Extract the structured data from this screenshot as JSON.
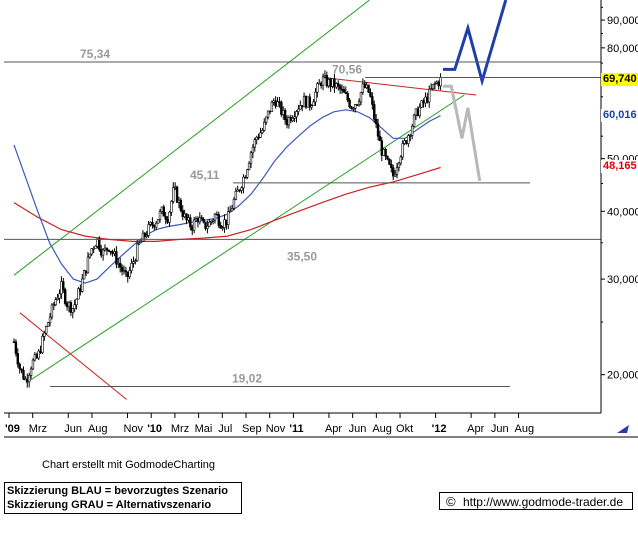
{
  "chart_data": {
    "type": "candlestick",
    "y_scale": "log",
    "ylim": [
      17000,
      98000
    ],
    "y_ticks": [
      {
        "value": 20000,
        "label": "20,000"
      },
      {
        "value": 30000,
        "label": "30,000"
      },
      {
        "value": 40000,
        "label": "40,000"
      },
      {
        "value": 50000,
        "label": "50,000"
      },
      {
        "value": 60000,
        "label": "60,000"
      },
      {
        "value": 70000,
        "label": "70,000"
      },
      {
        "value": 80000,
        "label": "80,000"
      },
      {
        "value": 90000,
        "label": "90,000"
      }
    ],
    "x_ticks": [
      {
        "t": 0,
        "label": "'09",
        "bold": true
      },
      {
        "t": 2,
        "label": "Mrz"
      },
      {
        "t": 5,
        "label": "Jun"
      },
      {
        "t": 7,
        "label": "Aug"
      },
      {
        "t": 10,
        "label": "Nov"
      },
      {
        "t": 12,
        "label": "'10",
        "bold": true
      },
      {
        "t": 14,
        "label": "Mrz"
      },
      {
        "t": 16,
        "label": "Mai"
      },
      {
        "t": 18,
        "label": "Jul"
      },
      {
        "t": 20,
        "label": "Sep"
      },
      {
        "t": 22,
        "label": "Nov"
      },
      {
        "t": 24,
        "label": "'11",
        "bold": true
      },
      {
        "t": 27,
        "label": "Apr"
      },
      {
        "t": 29,
        "label": "Jun"
      },
      {
        "t": 31,
        "label": "Aug"
      },
      {
        "t": 33,
        "label": "Okt"
      },
      {
        "t": 36,
        "label": "'12",
        "bold": true
      },
      {
        "t": 39,
        "label": "Apr"
      },
      {
        "t": 41,
        "label": "Jun"
      },
      {
        "t": 43,
        "label": "Aug"
      }
    ],
    "levels": [
      {
        "value": 75.34,
        "label": "75,34"
      },
      {
        "value": 70.56,
        "label": "70,56"
      },
      {
        "value": 45.11,
        "label": "45,11"
      },
      {
        "value": 35.5,
        "label": "35,50"
      },
      {
        "value": 19.02,
        "label": "19,02"
      }
    ],
    "price_markers": [
      {
        "value": 69740,
        "label": "69,740",
        "bg": "#ffff00",
        "color": "#000000"
      },
      {
        "value": 60016,
        "label": "60,016",
        "bg": "#ffffff",
        "color": "#1f3fa8"
      },
      {
        "value": 48165,
        "label": "48,165",
        "bg": "#ffffff",
        "color": "#e00000"
      }
    ],
    "series": {
      "close": [
        [
          0,
          23000
        ],
        [
          0.5,
          20500
        ],
        [
          1,
          19500
        ],
        [
          1.5,
          21000
        ],
        [
          2,
          21500
        ],
        [
          2.5,
          23500
        ],
        [
          3,
          25500
        ],
        [
          3.5,
          27500
        ],
        [
          4,
          29000
        ],
        [
          4.5,
          27000
        ],
        [
          5,
          26500
        ],
        [
          5.5,
          28500
        ],
        [
          6,
          31000
        ],
        [
          6.5,
          34000
        ],
        [
          7,
          35500
        ],
        [
          7.5,
          33500
        ],
        [
          8,
          34500
        ],
        [
          8.5,
          33000
        ],
        [
          9,
          31500
        ],
        [
          9.5,
          30000
        ],
        [
          10,
          32000
        ],
        [
          10.5,
          34500
        ],
        [
          11,
          36000
        ],
        [
          11.5,
          37500
        ],
        [
          12,
          38500
        ],
        [
          12.5,
          40000
        ],
        [
          13,
          39000
        ],
        [
          13.5,
          44000
        ],
        [
          14,
          41000
        ],
        [
          14.5,
          38500
        ],
        [
          15,
          37500
        ],
        [
          15.5,
          39000
        ],
        [
          16,
          37500
        ],
        [
          16.5,
          38000
        ],
        [
          17,
          39500
        ],
        [
          17.5,
          38000
        ],
        [
          18,
          38500
        ],
        [
          18.5,
          41500
        ],
        [
          19,
          44000
        ],
        [
          19.5,
          47000
        ],
        [
          20,
          51500
        ],
        [
          20.5,
          55000
        ],
        [
          21,
          56500
        ],
        [
          21.5,
          61000
        ],
        [
          22,
          64500
        ],
        [
          22.5,
          61500
        ],
        [
          23,
          58500
        ],
        [
          23.5,
          60500
        ],
        [
          24,
          62500
        ],
        [
          24.5,
          64000
        ],
        [
          25,
          63000
        ],
        [
          25.5,
          66500
        ],
        [
          26,
          70000
        ],
        [
          26.5,
          69000
        ],
        [
          27,
          68500
        ],
        [
          27.5,
          67000
        ],
        [
          28,
          65000
        ],
        [
          28.5,
          62500
        ],
        [
          29,
          64000
        ],
        [
          29.5,
          68000
        ],
        [
          30,
          66000
        ],
        [
          30.5,
          58000
        ],
        [
          31,
          52000
        ],
        [
          31.5,
          49000
        ],
        [
          32,
          46500
        ],
        [
          32.5,
          50500
        ],
        [
          33,
          53500
        ],
        [
          33.5,
          57000
        ],
        [
          34,
          61000
        ],
        [
          34.5,
          63000
        ],
        [
          35,
          65500
        ],
        [
          35.5,
          68500
        ],
        [
          36,
          69740
        ]
      ],
      "ma_blue": [
        [
          0,
          53000
        ],
        [
          1,
          46000
        ],
        [
          2,
          40000
        ],
        [
          3,
          35000
        ],
        [
          4,
          32000
        ],
        [
          5,
          30000
        ],
        [
          6,
          29500
        ],
        [
          7,
          30000
        ],
        [
          8,
          31500
        ],
        [
          9,
          33000
        ],
        [
          10,
          34500
        ],
        [
          11,
          36000
        ],
        [
          12,
          37000
        ],
        [
          13,
          37500
        ],
        [
          14,
          37800
        ],
        [
          15,
          38200
        ],
        [
          16,
          38500
        ],
        [
          17,
          38800
        ],
        [
          18,
          39500
        ],
        [
          19,
          41000
        ],
        [
          20,
          43000
        ],
        [
          21,
          46000
        ],
        [
          22,
          49500
        ],
        [
          23,
          52500
        ],
        [
          24,
          55000
        ],
        [
          25,
          57500
        ],
        [
          26,
          59500
        ],
        [
          27,
          61000
        ],
        [
          28,
          61500
        ],
        [
          29,
          61000
        ],
        [
          30,
          59500
        ],
        [
          31,
          57000
        ],
        [
          32,
          54500
        ],
        [
          33,
          54500
        ],
        [
          34,
          56500
        ],
        [
          35,
          58500
        ],
        [
          36,
          60016
        ]
      ],
      "ma_red": [
        [
          0,
          41500
        ],
        [
          2,
          39000
        ],
        [
          4,
          37000
        ],
        [
          6,
          36000
        ],
        [
          8,
          35500
        ],
        [
          10,
          35200
        ],
        [
          12,
          35200
        ],
        [
          14,
          35500
        ],
        [
          16,
          35700
        ],
        [
          18,
          36000
        ],
        [
          20,
          37000
        ],
        [
          22,
          38500
        ],
        [
          24,
          40000
        ],
        [
          26,
          41500
        ],
        [
          28,
          43000
        ],
        [
          30,
          44300
        ],
        [
          32,
          45300
        ],
        [
          34,
          46700
        ],
        [
          36,
          48165
        ]
      ]
    },
    "channel": {
      "upper": [
        [
          0,
          30500
        ],
        [
          30,
          98000
        ]
      ],
      "lower": [
        [
          1,
          19300
        ],
        [
          38,
          65500
        ]
      ]
    },
    "trend_lines": [
      {
        "name": "red-downtrend-early",
        "points": [
          [
            0.5,
            26000
          ],
          [
            9.5,
            18000
          ]
        ]
      },
      {
        "name": "red-resistance-top",
        "points": [
          [
            26,
            70560
          ],
          [
            39,
            65500
          ]
        ]
      }
    ],
    "scenarios": [
      {
        "label": "Skizzierung BLAU = bevorzugtes Szenario",
        "color": "#1f3fa8",
        "points": [
          [
            36.2,
            73000
          ],
          [
            37.2,
            73000
          ],
          [
            38.3,
            87000
          ],
          [
            39.5,
            69500
          ],
          [
            41.5,
            98000
          ]
        ]
      },
      {
        "label": "Skizzierung GRAU = Alternativszenario",
        "color": "#b8b8b8",
        "points": [
          [
            36.2,
            68000
          ],
          [
            36.9,
            68000
          ],
          [
            37.8,
            54500
          ],
          [
            38.3,
            62000
          ],
          [
            39.3,
            45500
          ]
        ]
      }
    ]
  },
  "footer": {
    "credit": "Chart erstellt mit GodmodeCharting",
    "legend_blue": "Skizzierung BLAU = bevorzugtes Szenario",
    "legend_grey": "Skizzierung GRAU = Alternativszenario",
    "copyright_symbol": "©",
    "url": "http://www.godmode-trader.de"
  },
  "colors": {
    "candles": "#000000",
    "ma_blue": "#3a5ab8",
    "ma_red": "#cc2222",
    "channel": "#22a022",
    "level_lines": "#555555",
    "level_labels": "#9a9a9a",
    "scenario_blue": "#1f3fa8",
    "scenario_grey": "#b8b8b8"
  }
}
